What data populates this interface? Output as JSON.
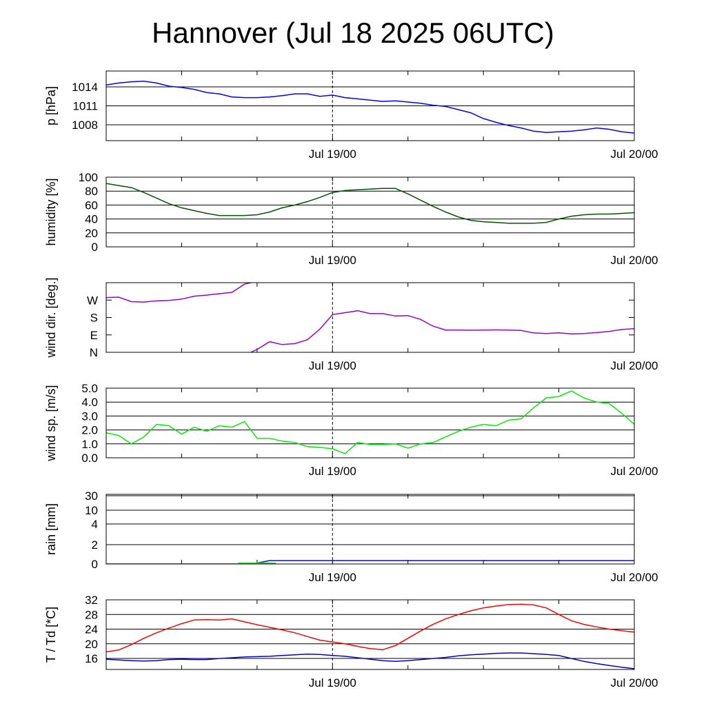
{
  "title": "Hannover (Jul 18 2025 06UTC)",
  "x_axis": {
    "start": "2025-07-18 06:00 UTC",
    "end": "2025-07-20 00:00 UTC",
    "tick_labels": [
      {
        "time": "2025-07-19 00:00 UTC",
        "label": "Jul 19/00"
      },
      {
        "time": "2025-07-20 00:00 UTC",
        "label": "Jul 20/00"
      }
    ],
    "dashed_marker": "2025-07-19 00:00 UTC"
  },
  "chart_data": [
    {
      "type": "line",
      "ylabel": "p [hPa]",
      "ylim": [
        1005.5,
        1016.5
      ],
      "yticks": [
        1008,
        1011,
        1014
      ],
      "ytick_labels": [
        "1008",
        "1011",
        "1014"
      ],
      "grid": true,
      "series": [
        {
          "color": "#0000ff",
          "x": [
            "2025-07-18 06:00",
            "2025-07-18 07:00",
            "2025-07-18 08:00",
            "2025-07-18 09:00",
            "2025-07-18 10:00",
            "2025-07-18 11:00",
            "2025-07-18 12:00",
            "2025-07-18 13:00",
            "2025-07-18 14:00",
            "2025-07-18 15:00",
            "2025-07-18 16:00",
            "2025-07-18 17:00",
            "2025-07-18 18:00",
            "2025-07-18 19:00",
            "2025-07-18 20:00",
            "2025-07-18 21:00",
            "2025-07-18 22:00",
            "2025-07-18 23:00",
            "2025-07-19 00:00",
            "2025-07-19 01:00",
            "2025-07-19 02:00",
            "2025-07-19 03:00",
            "2025-07-19 04:00",
            "2025-07-19 05:00",
            "2025-07-19 06:00",
            "2025-07-19 07:00",
            "2025-07-19 08:00",
            "2025-07-19 09:00",
            "2025-07-19 10:00",
            "2025-07-19 11:00",
            "2025-07-19 12:00",
            "2025-07-19 13:00",
            "2025-07-19 14:00",
            "2025-07-19 15:00",
            "2025-07-19 16:00",
            "2025-07-19 17:00",
            "2025-07-19 18:00",
            "2025-07-19 19:00",
            "2025-07-19 20:00",
            "2025-07-19 21:00",
            "2025-07-19 22:00",
            "2025-07-19 23:00",
            "2025-07-20 00:00"
          ],
          "y": [
            1014.3,
            1014.6,
            1014.8,
            1014.9,
            1014.6,
            1014.1,
            1013.9,
            1013.6,
            1013.1,
            1012.9,
            1012.4,
            1012.3,
            1012.3,
            1012.4,
            1012.6,
            1012.9,
            1012.9,
            1012.5,
            1012.7,
            1012.3,
            1012.1,
            1011.9,
            1011.7,
            1011.8,
            1011.6,
            1011.4,
            1011.1,
            1010.9,
            1010.4,
            1009.9,
            1009.0,
            1008.4,
            1007.9,
            1007.5,
            1007.0,
            1006.8,
            1006.9,
            1007.0,
            1007.2,
            1007.5,
            1007.3,
            1006.9,
            1006.7
          ]
        }
      ]
    },
    {
      "type": "line",
      "ylabel": "humidity [%]",
      "ylim": [
        0,
        100
      ],
      "yticks": [
        0,
        20,
        40,
        60,
        80,
        100
      ],
      "ytick_labels": [
        "0",
        "20",
        "40",
        "60",
        "80",
        "100"
      ],
      "grid": true,
      "series": [
        {
          "color": "#005500",
          "x": [
            "2025-07-18 06:00",
            "2025-07-18 07:00",
            "2025-07-18 08:00",
            "2025-07-18 09:00",
            "2025-07-18 10:00",
            "2025-07-18 11:00",
            "2025-07-18 12:00",
            "2025-07-18 13:00",
            "2025-07-18 14:00",
            "2025-07-18 15:00",
            "2025-07-18 16:00",
            "2025-07-18 17:00",
            "2025-07-18 18:00",
            "2025-07-18 19:00",
            "2025-07-18 20:00",
            "2025-07-18 21:00",
            "2025-07-18 22:00",
            "2025-07-18 23:00",
            "2025-07-19 00:00",
            "2025-07-19 01:00",
            "2025-07-19 02:00",
            "2025-07-19 03:00",
            "2025-07-19 04:00",
            "2025-07-19 05:00",
            "2025-07-19 06:00",
            "2025-07-19 07:00",
            "2025-07-19 08:00",
            "2025-07-19 09:00",
            "2025-07-19 10:00",
            "2025-07-19 11:00",
            "2025-07-19 12:00",
            "2025-07-19 13:00",
            "2025-07-19 14:00",
            "2025-07-19 15:00",
            "2025-07-19 16:00",
            "2025-07-19 17:00",
            "2025-07-19 18:00",
            "2025-07-19 19:00",
            "2025-07-19 20:00",
            "2025-07-19 21:00",
            "2025-07-19 22:00",
            "2025-07-19 23:00",
            "2025-07-20 00:00"
          ],
          "y": [
            91,
            88,
            85,
            78,
            70,
            62,
            56,
            52,
            48,
            45,
            45,
            45,
            46,
            50,
            56,
            60,
            65,
            71,
            78,
            81,
            82,
            83,
            84,
            84,
            76,
            67,
            58,
            50,
            43,
            38,
            36,
            35,
            34,
            34,
            34,
            35,
            40,
            44,
            46,
            47,
            47,
            48,
            49
          ]
        }
      ]
    },
    {
      "type": "line",
      "ylabel": "wind dir. [deg.]",
      "ylim": [
        0,
        360
      ],
      "yticks": [
        0,
        90,
        180,
        270
      ],
      "ytick_labels": [
        "N",
        "E",
        "S",
        "W"
      ],
      "grid": false,
      "series": [
        {
          "color": "#9900cc",
          "x": [
            "2025-07-18 06:00",
            "2025-07-18 07:00",
            "2025-07-18 08:00",
            "2025-07-18 09:00",
            "2025-07-18 10:00",
            "2025-07-18 11:00",
            "2025-07-18 12:00",
            "2025-07-18 13:00",
            "2025-07-18 14:00",
            "2025-07-18 15:00",
            "2025-07-18 16:00",
            "2025-07-18 17:00",
            "2025-07-18 18:00",
            "2025-07-18 19:00",
            "2025-07-18 20:00",
            "2025-07-18 21:00",
            "2025-07-18 22:00",
            "2025-07-18 23:00",
            "2025-07-19 00:00",
            "2025-07-19 01:00",
            "2025-07-19 02:00",
            "2025-07-19 03:00",
            "2025-07-19 04:00",
            "2025-07-19 05:00",
            "2025-07-19 06:00",
            "2025-07-19 07:00",
            "2025-07-19 08:00",
            "2025-07-19 09:00",
            "2025-07-19 10:00",
            "2025-07-19 11:00",
            "2025-07-19 12:00",
            "2025-07-19 13:00",
            "2025-07-19 14:00",
            "2025-07-19 15:00",
            "2025-07-19 16:00",
            "2025-07-19 17:00",
            "2025-07-19 18:00",
            "2025-07-19 19:00",
            "2025-07-19 20:00",
            "2025-07-19 21:00",
            "2025-07-19 22:00",
            "2025-07-19 23:00",
            "2025-07-20 00:00"
          ],
          "y": [
            283,
            285,
            262,
            260,
            266,
            268,
            275,
            290,
            296,
            303,
            310,
            352,
            15,
            55,
            40,
            45,
            65,
            120,
            195,
            205,
            215,
            200,
            200,
            188,
            190,
            170,
            135,
            115,
            115,
            114,
            115,
            116,
            115,
            113,
            100,
            97,
            101,
            95,
            97,
            102,
            108,
            118,
            122
          ]
        }
      ]
    },
    {
      "type": "line",
      "ylabel": "wind sp. [m/s]",
      "ylim": [
        0,
        5
      ],
      "yticks": [
        0,
        1,
        2,
        3,
        4,
        5
      ],
      "ytick_labels": [
        "0.0",
        "1.0",
        "2.0",
        "3.0",
        "4.0",
        "5.0"
      ],
      "grid": true,
      "series": [
        {
          "color": "#00ee00",
          "x": [
            "2025-07-18 06:00",
            "2025-07-18 07:00",
            "2025-07-18 08:00",
            "2025-07-18 09:00",
            "2025-07-18 10:00",
            "2025-07-18 11:00",
            "2025-07-18 12:00",
            "2025-07-18 13:00",
            "2025-07-18 14:00",
            "2025-07-18 15:00",
            "2025-07-18 16:00",
            "2025-07-18 17:00",
            "2025-07-18 18:00",
            "2025-07-18 19:00",
            "2025-07-18 20:00",
            "2025-07-18 21:00",
            "2025-07-18 22:00",
            "2025-07-18 23:00",
            "2025-07-19 00:00",
            "2025-07-19 01:00",
            "2025-07-19 02:00",
            "2025-07-19 03:00",
            "2025-07-19 04:00",
            "2025-07-19 05:00",
            "2025-07-19 06:00",
            "2025-07-19 07:00",
            "2025-07-19 08:00",
            "2025-07-19 09:00",
            "2025-07-19 10:00",
            "2025-07-19 11:00",
            "2025-07-19 12:00",
            "2025-07-19 13:00",
            "2025-07-19 14:00",
            "2025-07-19 15:00",
            "2025-07-19 16:00",
            "2025-07-19 17:00",
            "2025-07-19 18:00",
            "2025-07-19 19:00",
            "2025-07-19 20:00",
            "2025-07-19 21:00",
            "2025-07-19 22:00",
            "2025-07-19 23:00",
            "2025-07-20 00:00"
          ],
          "y": [
            1.8,
            1.6,
            1.0,
            1.5,
            2.4,
            2.3,
            1.7,
            2.2,
            1.9,
            2.3,
            2.2,
            2.6,
            1.4,
            1.4,
            1.2,
            1.1,
            0.8,
            0.75,
            0.65,
            0.3,
            1.1,
            0.95,
            0.95,
            1.0,
            0.7,
            1.0,
            1.1,
            1.5,
            1.9,
            2.2,
            2.4,
            2.3,
            2.7,
            2.8,
            3.6,
            4.3,
            4.4,
            4.8,
            4.3,
            4.0,
            3.9,
            3.2,
            2.4
          ]
        }
      ]
    },
    {
      "type": "area",
      "ylabel": "rain [mm]",
      "ylim": [
        0,
        30
      ],
      "yscale": "nonlinear",
      "yticks": [
        0,
        2,
        4,
        10,
        30
      ],
      "ytick_labels": [
        "0",
        "2",
        "4",
        "10",
        "30"
      ],
      "grid": true,
      "series": [
        {
          "color": "#0000ff",
          "x": [
            "2025-07-18 06:00",
            "2025-07-18 17:00",
            "2025-07-18 18:00",
            "2025-07-18 19:00",
            "2025-07-19 00:00",
            "2025-07-20 00:00"
          ],
          "y": [
            0,
            0,
            0.1,
            0.35,
            0.35,
            0.35
          ]
        },
        {
          "color": "#33cc33",
          "x": [
            "2025-07-18 16:30",
            "2025-07-18 19:30"
          ],
          "y": [
            0.15,
            0.15
          ]
        }
      ]
    },
    {
      "type": "line",
      "ylabel": "T / Td [*C]",
      "ylim": [
        13,
        32
      ],
      "yticks": [
        16,
        20,
        24,
        28,
        32
      ],
      "ytick_labels": [
        "16",
        "20",
        "24",
        "28",
        "32"
      ],
      "grid": true,
      "series": [
        {
          "color": "#ff0000",
          "x": [
            "2025-07-18 06:00",
            "2025-07-18 07:00",
            "2025-07-18 08:00",
            "2025-07-18 09:00",
            "2025-07-18 10:00",
            "2025-07-18 11:00",
            "2025-07-18 12:00",
            "2025-07-18 13:00",
            "2025-07-18 14:00",
            "2025-07-18 15:00",
            "2025-07-18 16:00",
            "2025-07-18 17:00",
            "2025-07-18 18:00",
            "2025-07-18 19:00",
            "2025-07-18 20:00",
            "2025-07-18 21:00",
            "2025-07-18 22:00",
            "2025-07-18 23:00",
            "2025-07-19 00:00",
            "2025-07-19 01:00",
            "2025-07-19 02:00",
            "2025-07-19 03:00",
            "2025-07-19 04:00",
            "2025-07-19 05:00",
            "2025-07-19 06:00",
            "2025-07-19 07:00",
            "2025-07-19 08:00",
            "2025-07-19 09:00",
            "2025-07-19 10:00",
            "2025-07-19 11:00",
            "2025-07-19 12:00",
            "2025-07-19 13:00",
            "2025-07-19 14:00",
            "2025-07-19 15:00",
            "2025-07-19 16:00",
            "2025-07-19 17:00",
            "2025-07-19 18:00",
            "2025-07-19 19:00",
            "2025-07-19 20:00",
            "2025-07-19 21:00",
            "2025-07-19 22:00",
            "2025-07-19 23:00",
            "2025-07-20 00:00"
          ],
          "y": [
            17.8,
            18.3,
            19.8,
            21.5,
            23.0,
            24.3,
            25.5,
            26.5,
            26.6,
            26.5,
            26.8,
            26.0,
            25.2,
            24.5,
            23.8,
            23.0,
            22.0,
            21.0,
            20.5,
            20.0,
            19.3,
            18.7,
            18.4,
            19.5,
            21.5,
            23.5,
            25.3,
            26.8,
            28.0,
            29.0,
            29.8,
            30.3,
            30.7,
            30.8,
            30.6,
            29.8,
            28.0,
            26.3,
            25.3,
            24.6,
            24.0,
            23.6,
            23.2
          ]
        },
        {
          "color": "#0000cc",
          "x": [
            "2025-07-18 06:00",
            "2025-07-18 07:00",
            "2025-07-18 08:00",
            "2025-07-18 09:00",
            "2025-07-18 10:00",
            "2025-07-18 11:00",
            "2025-07-18 12:00",
            "2025-07-18 13:00",
            "2025-07-18 14:00",
            "2025-07-18 15:00",
            "2025-07-18 16:00",
            "2025-07-18 17:00",
            "2025-07-18 18:00",
            "2025-07-18 19:00",
            "2025-07-18 20:00",
            "2025-07-18 21:00",
            "2025-07-18 22:00",
            "2025-07-18 23:00",
            "2025-07-19 00:00",
            "2025-07-19 01:00",
            "2025-07-19 02:00",
            "2025-07-19 03:00",
            "2025-07-19 04:00",
            "2025-07-19 05:00",
            "2025-07-19 06:00",
            "2025-07-19 07:00",
            "2025-07-19 08:00",
            "2025-07-19 09:00",
            "2025-07-19 10:00",
            "2025-07-19 11:00",
            "2025-07-19 12:00",
            "2025-07-19 13:00",
            "2025-07-19 14:00",
            "2025-07-19 15:00",
            "2025-07-19 16:00",
            "2025-07-19 17:00",
            "2025-07-19 18:00",
            "2025-07-19 19:00",
            "2025-07-19 20:00",
            "2025-07-19 21:00",
            "2025-07-19 22:00",
            "2025-07-19 23:00",
            "2025-07-20 00:00"
          ],
          "y": [
            15.8,
            15.6,
            15.4,
            15.3,
            15.4,
            15.7,
            15.8,
            15.7,
            15.7,
            16.0,
            16.2,
            16.4,
            16.5,
            16.6,
            16.8,
            17.0,
            17.2,
            17.1,
            16.8,
            16.6,
            16.2,
            15.8,
            15.4,
            15.2,
            15.4,
            15.7,
            16.0,
            16.3,
            16.7,
            17.0,
            17.2,
            17.4,
            17.5,
            17.5,
            17.3,
            17.1,
            16.8,
            16.0,
            15.2,
            14.6,
            14.1,
            13.6,
            13.2
          ]
        }
      ]
    }
  ]
}
